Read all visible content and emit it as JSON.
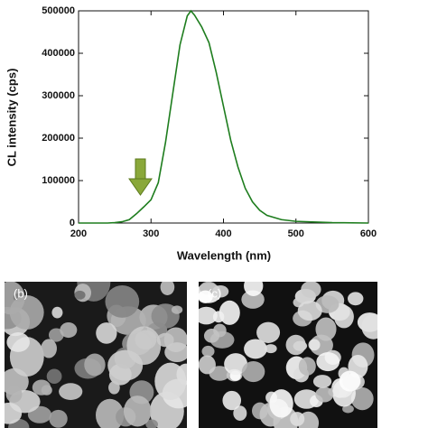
{
  "chart_data": {
    "type": "line",
    "x_label": "Wavelength (nm)",
    "y_label": "CL intensity (cps)",
    "x": [
      200,
      240,
      250,
      260,
      270,
      280,
      290,
      300,
      310,
      320,
      330,
      340,
      350,
      355,
      360,
      370,
      380,
      390,
      400,
      410,
      420,
      430,
      440,
      450,
      460,
      480,
      500,
      550,
      600
    ],
    "values": [
      0,
      0,
      1000,
      3000,
      8000,
      22000,
      38000,
      55000,
      95000,
      190000,
      305000,
      420000,
      488000,
      500000,
      490000,
      462000,
      425000,
      355000,
      275000,
      195000,
      132000,
      82000,
      50000,
      30000,
      18000,
      8000,
      4000,
      1000,
      0
    ],
    "color": "#1e7d1e",
    "xlim": [
      200,
      600
    ],
    "xticks": [
      200,
      300,
      400,
      500,
      600
    ],
    "ylim": [
      0,
      500000
    ],
    "yticks": [
      0,
      100000,
      200000,
      300000,
      400000,
      500000
    ]
  },
  "panels": [
    {
      "label": "(b)"
    },
    {
      "label": "(c)"
    }
  ]
}
